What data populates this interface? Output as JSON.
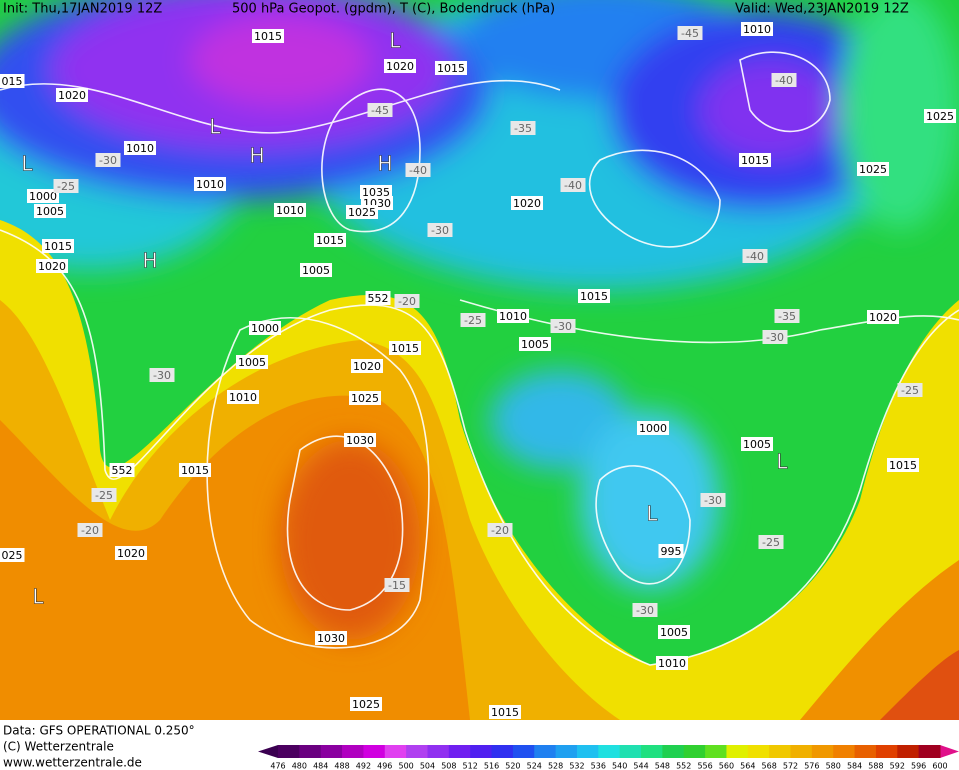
{
  "header": {
    "init": "Init: Thu,17JAN2019 12Z",
    "title": "500 hPa Geopot. (gpdm), T (C), Bodendruck (hPa)",
    "valid": "Valid: Wed,23JAN2019 12Z"
  },
  "footer": {
    "data": "Data: GFS OPERATIONAL 0.250°",
    "copyright": "(C) Wetterzentrale",
    "url": "www.wetterzentrale.de"
  },
  "legend": {
    "labels": [
      "476",
      "480",
      "484",
      "488",
      "492",
      "496",
      "500",
      "504",
      "508",
      "512",
      "516",
      "520",
      "524",
      "528",
      "532",
      "536",
      "540",
      "544",
      "548",
      "552",
      "556",
      "560",
      "564",
      "568",
      "572",
      "576",
      "580",
      "584",
      "588",
      "592",
      "596",
      "600"
    ]
  },
  "map_labels": [
    "1015",
    "L",
    "1020",
    "1015",
    "1020",
    "1010",
    "H",
    "H",
    "1010",
    "1035",
    "1030",
    "1025",
    "1010",
    "1015",
    "1005",
    "1000",
    "1005",
    "1010",
    "1015",
    "1020",
    "1025",
    "1030",
    "1015",
    "1020",
    "1030",
    "1025",
    "1015",
    "1010",
    "1005",
    "1015",
    "1020",
    "1000",
    "1005",
    "995",
    "1005",
    "1010",
    "1015",
    "1020",
    "1025",
    "1015",
    "1010",
    "L",
    "L",
    "L",
    "L",
    "H",
    "L",
    "1015",
    "1020",
    "1005",
    "1000",
    "015",
    "-45",
    "-40",
    "-35",
    "-40",
    "-45",
    "-40",
    "-30",
    "-40",
    "-35",
    "-30",
    "-30",
    "-25",
    "-20",
    "-30",
    "-25",
    "-30",
    "-25",
    "-20",
    "-20",
    "-15",
    "-30",
    "-25",
    "-30",
    "-25",
    "552",
    "552",
    "1025",
    "025"
  ]
}
